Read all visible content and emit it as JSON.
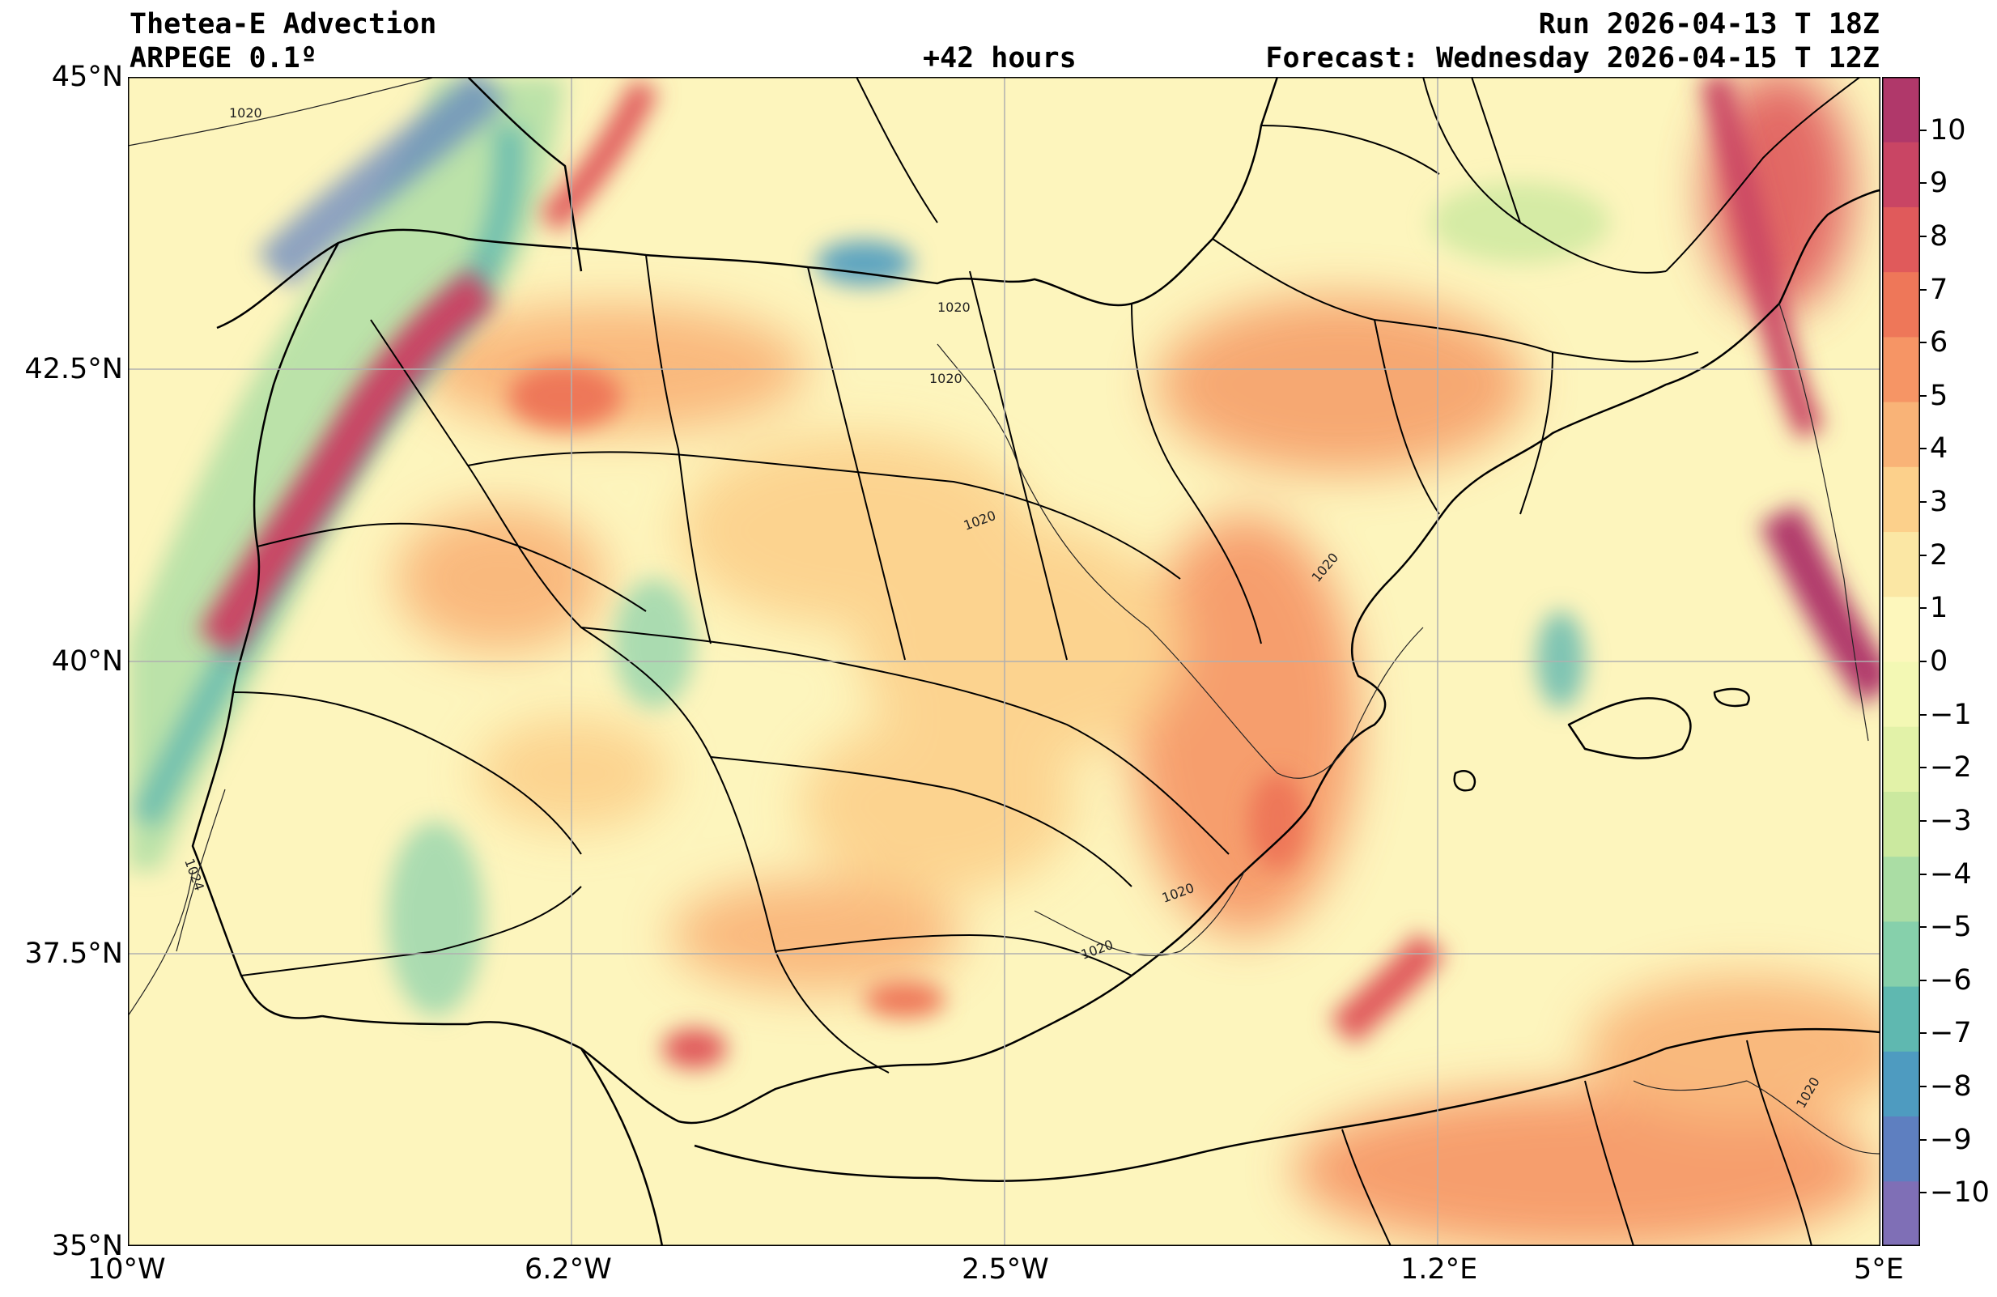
{
  "header": {
    "title": "Thetea-E Advection",
    "model": "ARPEGE 0.1º",
    "lead": "+42 hours",
    "run": "Run 2026-04-13 T 18Z",
    "forecast": "Forecast: Wednesday 2026-04-15 T 12Z"
  },
  "axes": {
    "lon_ticks": [
      "10°W",
      "6.2°W",
      "2.5°W",
      "1.2°E",
      "5°E"
    ],
    "lat_ticks": [
      "45°N",
      "42.5°N",
      "40°N",
      "37.5°N",
      "35°N"
    ],
    "lon_range": [
      -10,
      5
    ],
    "lat_range": [
      35,
      45
    ],
    "grid": true
  },
  "colorbar": {
    "range": [
      -11,
      11
    ],
    "tick_labels": [
      "10",
      "9",
      "8",
      "7",
      "6",
      "5",
      "4",
      "3",
      "2",
      "1",
      "0",
      "−1",
      "−2",
      "−3",
      "−4",
      "−5",
      "−6",
      "−7",
      "−8",
      "−9",
      "−10"
    ],
    "colors": [
      "#7f6fb6",
      "#5e7fc0",
      "#4e9bc0",
      "#5fb8b0",
      "#86d0ab",
      "#aadda4",
      "#cbe99f",
      "#e2f2a8",
      "#f3f8b4",
      "#fdf7bc",
      "#fbe7a4",
      "#fcd08b",
      "#f9b377",
      "#f69565",
      "#ee7759",
      "#e05a5b",
      "#c94564",
      "#b0386a"
    ]
  },
  "isobar_labels": [
    "1020",
    "1020",
    "1020",
    "1020",
    "1020",
    "1020",
    "1020",
    "1024",
    "1020"
  ],
  "colors": {
    "background": "#fdf5bd",
    "land_border": "#000000",
    "grid": "#b0b0b0"
  }
}
